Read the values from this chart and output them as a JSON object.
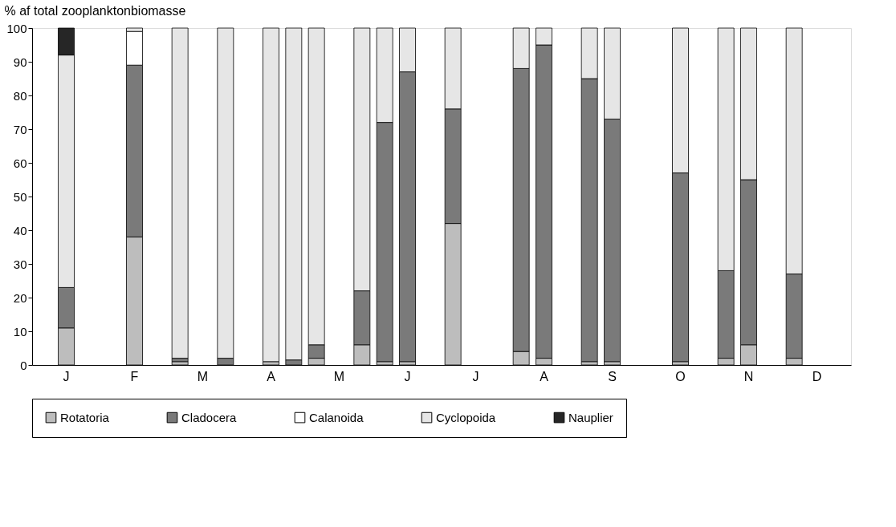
{
  "chart_data": {
    "type": "bar",
    "stacked": true,
    "ylabel": "% af total zooplanktonbiomasse",
    "categories": [
      null,
      "J",
      null,
      null,
      "F",
      null,
      null,
      "M",
      null,
      null,
      "A",
      null,
      null,
      "M",
      null,
      null,
      "J",
      null,
      null,
      "J",
      null,
      null,
      "A",
      null,
      null,
      "S",
      null,
      null,
      "O",
      null,
      null,
      "N",
      null,
      null,
      "D",
      null
    ],
    "series": [
      {
        "name": "Rotatoria",
        "color": "#bdbdbd",
        "values": [
          null,
          11,
          null,
          null,
          38,
          null,
          1,
          null,
          null,
          null,
          1,
          null,
          2,
          null,
          6,
          1,
          1,
          null,
          42,
          null,
          null,
          4,
          2,
          null,
          1,
          1,
          null,
          null,
          1,
          null,
          2,
          6,
          null,
          2,
          null,
          null
        ]
      },
      {
        "name": "Cladocera",
        "color": "#7a7a7a",
        "values": [
          null,
          12,
          null,
          null,
          51,
          null,
          1,
          null,
          2,
          null,
          null,
          1.5,
          4,
          null,
          16,
          71,
          86,
          null,
          34,
          null,
          null,
          84,
          93,
          null,
          84,
          72,
          null,
          null,
          56,
          null,
          26,
          49,
          null,
          25,
          null,
          null
        ]
      },
      {
        "name": "Calanoida",
        "color": "#ffffff",
        "values": [
          null,
          null,
          null,
          null,
          10,
          null,
          null,
          null,
          null,
          null,
          null,
          null,
          null,
          null,
          null,
          null,
          null,
          null,
          null,
          null,
          null,
          null,
          null,
          null,
          null,
          null,
          null,
          null,
          null,
          null,
          null,
          null,
          null,
          null,
          null,
          null
        ]
      },
      {
        "name": "Cyclopoida",
        "color": "#e6e6e6",
        "values": [
          null,
          69,
          null,
          null,
          1,
          null,
          98,
          null,
          98,
          null,
          99,
          98.5,
          94,
          null,
          78,
          28,
          13,
          null,
          24,
          null,
          null,
          12,
          5,
          null,
          15,
          27,
          null,
          null,
          43,
          null,
          72,
          45,
          null,
          73,
          null,
          null
        ]
      },
      {
        "name": "Nauplier",
        "color": "#262626",
        "values": [
          null,
          8,
          null,
          null,
          null,
          null,
          null,
          null,
          null,
          null,
          null,
          null,
          null,
          null,
          null,
          null,
          null,
          null,
          null,
          null,
          null,
          null,
          null,
          null,
          null,
          null,
          null,
          null,
          null,
          null,
          null,
          null,
          null,
          null,
          null,
          null
        ]
      }
    ],
    "ylim": [
      0,
      100
    ],
    "yticks": [
      0,
      10,
      20,
      30,
      40,
      50,
      60,
      70,
      80,
      90,
      100
    ],
    "grid": false,
    "legend": "bottom"
  }
}
